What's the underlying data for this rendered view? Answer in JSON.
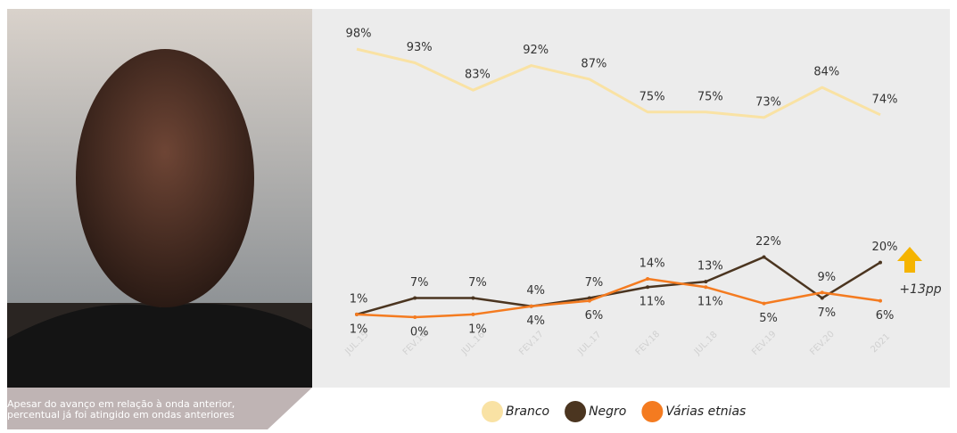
{
  "caption": "Apesar do avanço em relação à onda anterior, percentual já foi atingido em ondas anteriores",
  "chart_data": {
    "type": "line",
    "categories": [
      "JUL.15",
      "FEV.16",
      "JUL.16",
      "FEV.17",
      "JUL.17",
      "FEV.18",
      "JUL.18",
      "FEV.19",
      "FEV.20",
      "2021"
    ],
    "ylim": [
      0,
      100
    ],
    "series": [
      {
        "name": "Branco",
        "color": "#f9e2a4",
        "values": [
          98,
          93,
          83,
          92,
          87,
          75,
          75,
          73,
          84,
          74
        ],
        "value_labels": [
          "98%",
          "93%",
          "83%",
          "92%",
          "87%",
          "75%",
          "75%",
          "73%",
          "84%",
          "74%"
        ]
      },
      {
        "name": "Negro",
        "color": "#4b3520",
        "values": [
          1,
          7,
          7,
          4,
          7,
          11,
          13,
          22,
          7,
          20
        ],
        "value_labels": [
          "1%",
          "7%",
          "7%",
          "4%",
          "7%",
          "11%",
          "13%",
          "22%",
          "7%",
          "20%"
        ]
      },
      {
        "name": "Várias etnias",
        "color": "#f47b20",
        "values": [
          1,
          0,
          1,
          4,
          6,
          14,
          11,
          5,
          9,
          6
        ],
        "value_labels": [
          "1%",
          "0%",
          "1%",
          "4%",
          "6%",
          "14%",
          "11%",
          "5%",
          "9%",
          "6%"
        ]
      }
    ],
    "annotation": "+13pp"
  }
}
